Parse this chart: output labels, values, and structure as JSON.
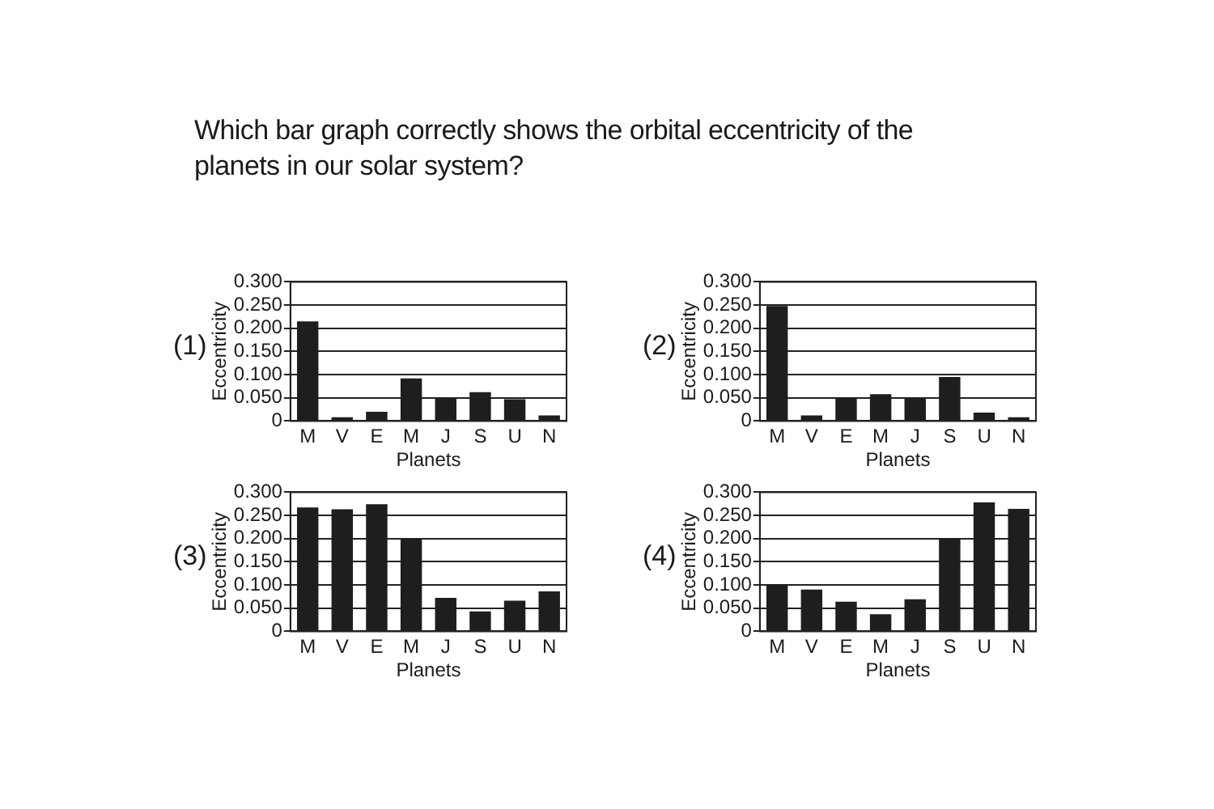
{
  "chart_data": [
    {
      "type": "bar",
      "title": "Which bar graph correctly shows the orbital eccentricity of the planets in our solar system?",
      "annotations": [
        "(1)"
      ],
      "xlabel": "Planets",
      "ylabel": "Eccentricity",
      "categories": [
        "M",
        "V",
        "E",
        "M",
        "J",
        "S",
        "U",
        "N"
      ],
      "color": "#1e1e1e",
      "values": [
        0.215,
        0.008,
        0.02,
        0.092,
        0.048,
        0.062,
        0.047,
        0.012
      ],
      "ylim": [
        0,
        0.3
      ],
      "yticks": [
        {
          "value": 0,
          "label": "0"
        },
        {
          "value": 0.05,
          "label": "0.050"
        },
        {
          "value": 0.1,
          "label": "0.100"
        },
        {
          "value": 0.15,
          "label": "0.150"
        },
        {
          "value": 0.2,
          "label": "0.200"
        },
        {
          "value": 0.25,
          "label": "0.250"
        },
        {
          "value": 0.3,
          "label": "0.300"
        }
      ],
      "grid": "y",
      "legend": false
    },
    {
      "type": "bar",
      "annotations": [
        "(2)"
      ],
      "xlabel": "Planets",
      "ylabel": "Eccentricity",
      "categories": [
        "M",
        "V",
        "E",
        "M",
        "J",
        "S",
        "U",
        "N"
      ],
      "color": "#1e1e1e",
      "values": [
        0.248,
        0.012,
        0.05,
        0.058,
        0.048,
        0.095,
        0.018,
        0.008
      ],
      "ylim": [
        0,
        0.3
      ],
      "yticks": [
        {
          "value": 0,
          "label": "0"
        },
        {
          "value": 0.05,
          "label": "0.050"
        },
        {
          "value": 0.1,
          "label": "0.100"
        },
        {
          "value": 0.15,
          "label": "0.150"
        },
        {
          "value": 0.2,
          "label": "0.200"
        },
        {
          "value": 0.25,
          "label": "0.250"
        },
        {
          "value": 0.3,
          "label": "0.300"
        }
      ],
      "grid": "y",
      "legend": false
    },
    {
      "type": "bar",
      "annotations": [
        "(3)"
      ],
      "xlabel": "Planets",
      "ylabel": "Eccentricity",
      "categories": [
        "M",
        "V",
        "E",
        "M",
        "J",
        "S",
        "U",
        "N"
      ],
      "color": "#1e1e1e",
      "values": [
        0.267,
        0.263,
        0.274,
        0.198,
        0.072,
        0.043,
        0.066,
        0.086
      ],
      "ylim": [
        0,
        0.3
      ],
      "yticks": [
        {
          "value": 0,
          "label": "0"
        },
        {
          "value": 0.05,
          "label": "0.050"
        },
        {
          "value": 0.1,
          "label": "0.100"
        },
        {
          "value": 0.15,
          "label": "0.150"
        },
        {
          "value": 0.2,
          "label": "0.200"
        },
        {
          "value": 0.25,
          "label": "0.250"
        },
        {
          "value": 0.3,
          "label": "0.300"
        }
      ],
      "grid": "y",
      "legend": false
    },
    {
      "type": "bar",
      "annotations": [
        "(4)"
      ],
      "xlabel": "Planets",
      "ylabel": "Eccentricity",
      "categories": [
        "M",
        "V",
        "E",
        "M",
        "J",
        "S",
        "U",
        "N"
      ],
      "color": "#1e1e1e",
      "values": [
        0.101,
        0.09,
        0.064,
        0.037,
        0.069,
        0.201,
        0.278,
        0.264
      ],
      "ylim": [
        0,
        0.3
      ],
      "yticks": [
        {
          "value": 0,
          "label": "0"
        },
        {
          "value": 0.05,
          "label": "0.050"
        },
        {
          "value": 0.1,
          "label": "0.100"
        },
        {
          "value": 0.15,
          "label": "0.150"
        },
        {
          "value": 0.2,
          "label": "0.200"
        },
        {
          "value": 0.25,
          "label": "0.250"
        },
        {
          "value": 0.3,
          "label": "0.300"
        }
      ],
      "grid": "y",
      "legend": false
    }
  ]
}
